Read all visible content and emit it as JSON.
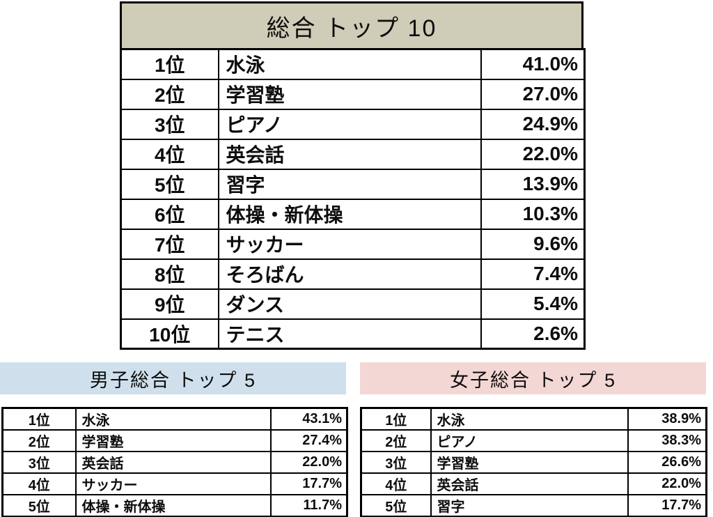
{
  "page": {
    "background_color": "#ffffff",
    "text_color": "#0d0d0d"
  },
  "tables": {
    "overall": {
      "title": "総合 トップ 10",
      "header_color": "#cfccb7",
      "rows": [
        {
          "rank": "1位",
          "item": "水泳",
          "value": "41.0%"
        },
        {
          "rank": "2位",
          "item": "学習塾",
          "value": "27.0%"
        },
        {
          "rank": "3位",
          "item": "ピアノ",
          "value": "24.9%"
        },
        {
          "rank": "4位",
          "item": "英会話",
          "value": "22.0%"
        },
        {
          "rank": "5位",
          "item": "習字",
          "value": "13.9%"
        },
        {
          "rank": "6位",
          "item": "体操・新体操",
          "value": "10.3%"
        },
        {
          "rank": "7位",
          "item": "サッカー",
          "value": "9.6%"
        },
        {
          "rank": "8位",
          "item": "そろばん",
          "value": "7.4%"
        },
        {
          "rank": "9位",
          "item": "ダンス",
          "value": "5.4%"
        },
        {
          "rank": "10位",
          "item": "テニス",
          "value": "2.6%"
        }
      ]
    },
    "boys": {
      "title": "男子総合 トップ 5",
      "header_color": "#cfe0ec",
      "rows": [
        {
          "rank": "1位",
          "item": "水泳",
          "value": "43.1%"
        },
        {
          "rank": "2位",
          "item": "学習塾",
          "value": "27.4%"
        },
        {
          "rank": "3位",
          "item": "英会話",
          "value": "22.0%"
        },
        {
          "rank": "4位",
          "item": "サッカー",
          "value": "17.7%"
        },
        {
          "rank": "5位",
          "item": "体操・新体操",
          "value": "11.7%"
        }
      ]
    },
    "girls": {
      "title": "女子総合 トップ 5",
      "header_color": "#f2d7d5",
      "rows": [
        {
          "rank": "1位",
          "item": "水泳",
          "value": "38.9%"
        },
        {
          "rank": "2位",
          "item": "ピアノ",
          "value": "38.3%"
        },
        {
          "rank": "3位",
          "item": "学習塾",
          "value": "26.6%"
        },
        {
          "rank": "4位",
          "item": "英会話",
          "value": "22.0%"
        },
        {
          "rank": "5位",
          "item": "習字",
          "value": "17.7%"
        }
      ]
    }
  }
}
